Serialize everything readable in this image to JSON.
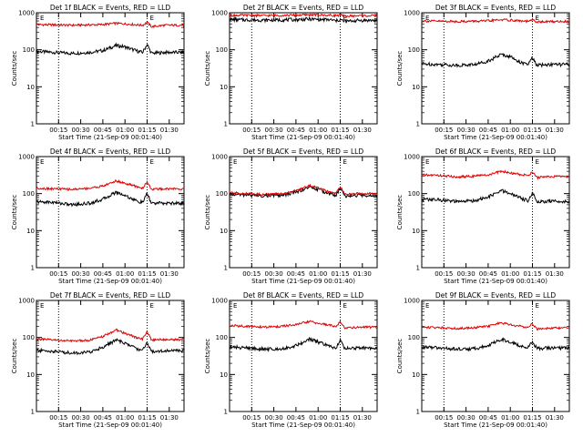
{
  "colors": {
    "events": "#000000",
    "lld": "#e00000",
    "axes": "#000000",
    "background": "#ffffff"
  },
  "chart_data": [
    {
      "type": "line",
      "title": "Det 1f BLACK = Events, RED = LLD",
      "xlabel": "Start Time (21-Sep-09 00:01:40)",
      "ylabel": "Counts/sec",
      "xlim": [
        0.0,
        1.6667
      ],
      "ylim": [
        1,
        1000
      ],
      "y_scale": "log",
      "xticks": [
        0.25,
        0.5,
        0.75,
        1.0,
        1.25,
        1.5
      ],
      "xtick_labels": [
        "00:15",
        "00:30",
        "00:45",
        "01:00",
        "01:15",
        "01:30"
      ],
      "yticks": [
        1,
        10,
        100,
        1000
      ],
      "ytick_labels": [
        "1",
        "10",
        "100",
        "1000"
      ],
      "vlines": [
        0.25,
        1.25
      ],
      "markers": [
        "E",
        "E"
      ],
      "x": [
        0.0,
        0.2,
        0.4,
        0.6,
        0.75,
        0.9,
        1.0,
        1.15,
        1.2,
        1.25,
        1.3,
        1.45,
        1.6667
      ],
      "series": [
        {
          "values": [
            90,
            85,
            80,
            85,
            95,
            130,
            120,
            90,
            85,
            140,
            80,
            85,
            85
          ]
        },
        {
          "values": [
            480,
            470,
            460,
            470,
            480,
            520,
            500,
            470,
            460,
            550,
            420,
            460,
            460
          ]
        }
      ]
    },
    {
      "type": "line",
      "title": "Det 2f BLACK = Events, RED = LLD",
      "xlabel": "Start Time (21-Sep-09 00:01:40)",
      "ylabel": "Counts/sec",
      "xlim": [
        0.0,
        1.6667
      ],
      "ylim": [
        1,
        1000
      ],
      "y_scale": "log",
      "xticks": [
        0.25,
        0.5,
        0.75,
        1.0,
        1.25,
        1.5
      ],
      "xtick_labels": [
        "00:15",
        "00:30",
        "00:45",
        "01:00",
        "01:15",
        "01:30"
      ],
      "yticks": [
        1,
        10,
        100,
        1000
      ],
      "ytick_labels": [
        "1",
        "10",
        "100",
        "1000"
      ],
      "vlines": [
        0.25,
        1.25
      ],
      "markers": [
        "E",
        "E"
      ],
      "x": [
        0.0,
        0.2,
        0.4,
        0.6,
        0.75,
        0.9,
        1.0,
        1.15,
        1.2,
        1.25,
        1.3,
        1.45,
        1.6667
      ],
      "series": [
        {
          "values": [
            650,
            640,
            630,
            640,
            650,
            670,
            660,
            640,
            600,
            650,
            580,
            620,
            620
          ]
        },
        {
          "values": [
            860,
            850,
            840,
            850,
            860,
            880,
            870,
            850,
            840,
            870,
            800,
            830,
            830
          ]
        }
      ]
    },
    {
      "type": "line",
      "title": "Det 3f BLACK = Events, RED = LLD",
      "xlabel": "Start Time (21-Sep-09 00:01:40)",
      "ylabel": "Counts/sec",
      "xlim": [
        0.0,
        1.6667
      ],
      "ylim": [
        1,
        1000
      ],
      "y_scale": "log",
      "xticks": [
        0.25,
        0.5,
        0.75,
        1.0,
        1.25,
        1.5
      ],
      "xtick_labels": [
        "00:15",
        "00:30",
        "00:45",
        "01:00",
        "01:15",
        "01:30"
      ],
      "yticks": [
        1,
        10,
        100,
        1000
      ],
      "ytick_labels": [
        "1",
        "10",
        "100",
        "1000"
      ],
      "vlines": [
        0.25,
        1.25
      ],
      "markers": [
        "E",
        "E"
      ],
      "x": [
        0.0,
        0.2,
        0.4,
        0.6,
        0.75,
        0.9,
        1.0,
        1.15,
        1.2,
        1.25,
        1.3,
        1.45,
        1.6667
      ],
      "series": [
        {
          "values": [
            42,
            40,
            38,
            40,
            50,
            75,
            65,
            42,
            40,
            60,
            38,
            40,
            40
          ]
        },
        {
          "values": [
            600,
            590,
            580,
            590,
            600,
            650,
            630,
            590,
            580,
            640,
            560,
            580,
            580
          ]
        }
      ]
    },
    {
      "type": "line",
      "title": "Det 4f BLACK = Events, RED = LLD",
      "xlabel": "Start Time (21-Sep-09 00:01:40)",
      "ylabel": "Counts/sec",
      "xlim": [
        0.0,
        1.6667
      ],
      "ylim": [
        1,
        1000
      ],
      "y_scale": "log",
      "xticks": [
        0.25,
        0.5,
        0.75,
        1.0,
        1.25,
        1.5
      ],
      "xtick_labels": [
        "00:15",
        "00:30",
        "00:45",
        "01:00",
        "01:15",
        "01:30"
      ],
      "yticks": [
        1,
        10,
        100,
        1000
      ],
      "ytick_labels": [
        "1",
        "10",
        "100",
        "1000"
      ],
      "vlines": [
        0.25,
        1.25
      ],
      "markers": [
        "E",
        "E"
      ],
      "x": [
        0.0,
        0.2,
        0.4,
        0.6,
        0.75,
        0.9,
        1.0,
        1.15,
        1.2,
        1.25,
        1.3,
        1.45,
        1.6667
      ],
      "series": [
        {
          "values": [
            60,
            58,
            50,
            55,
            70,
            110,
            90,
            60,
            58,
            100,
            55,
            55,
            55
          ]
        },
        {
          "values": [
            140,
            135,
            130,
            140,
            160,
            220,
            190,
            150,
            140,
            210,
            130,
            135,
            135
          ]
        }
      ]
    },
    {
      "type": "line",
      "title": "Det 5f BLACK = Events, RED = LLD",
      "xlabel": "Start Time (21-Sep-09 00:01:40)",
      "ylabel": "Counts/sec",
      "xlim": [
        0.0,
        1.6667
      ],
      "ylim": [
        1,
        1000
      ],
      "y_scale": "log",
      "xticks": [
        0.25,
        0.5,
        0.75,
        1.0,
        1.25,
        1.5
      ],
      "xtick_labels": [
        "00:15",
        "00:30",
        "00:45",
        "01:00",
        "01:15",
        "01:30"
      ],
      "yticks": [
        1,
        10,
        100,
        1000
      ],
      "ytick_labels": [
        "1",
        "10",
        "100",
        "1000"
      ],
      "vlines": [
        0.25,
        1.25
      ],
      "markers": [
        "E",
        "E"
      ],
      "x": [
        0.0,
        0.2,
        0.4,
        0.6,
        0.75,
        0.9,
        1.0,
        1.15,
        1.2,
        1.25,
        1.3,
        1.45,
        1.6667
      ],
      "series": [
        {
          "values": [
            95,
            92,
            88,
            90,
            110,
            150,
            130,
            95,
            90,
            140,
            85,
            90,
            90
          ]
        },
        {
          "values": [
            105,
            100,
            95,
            100,
            120,
            165,
            145,
            105,
            100,
            155,
            95,
            100,
            100
          ]
        }
      ]
    },
    {
      "type": "line",
      "title": "Det 6f BLACK = Events, RED = LLD",
      "xlabel": "Start Time (21-Sep-09 00:01:40)",
      "ylabel": "Counts/sec",
      "xlim": [
        0.0,
        1.6667
      ],
      "ylim": [
        1,
        1000
      ],
      "y_scale": "log",
      "xticks": [
        0.25,
        0.5,
        0.75,
        1.0,
        1.25,
        1.5
      ],
      "xtick_labels": [
        "00:15",
        "00:30",
        "00:45",
        "01:00",
        "01:15",
        "01:30"
      ],
      "yticks": [
        1,
        10,
        100,
        1000
      ],
      "ytick_labels": [
        "1",
        "10",
        "100",
        "1000"
      ],
      "vlines": [
        0.25,
        1.25
      ],
      "markers": [
        "E",
        "E"
      ],
      "x": [
        0.0,
        0.2,
        0.4,
        0.6,
        0.75,
        0.9,
        1.0,
        1.15,
        1.2,
        1.25,
        1.3,
        1.45,
        1.6667
      ],
      "series": [
        {
          "values": [
            70,
            68,
            60,
            65,
            80,
            120,
            100,
            70,
            65,
            110,
            60,
            62,
            62
          ]
        },
        {
          "values": [
            320,
            310,
            280,
            300,
            320,
            400,
            360,
            320,
            310,
            380,
            270,
            290,
            290
          ]
        }
      ]
    },
    {
      "type": "line",
      "title": "Det 7f BLACK = Events, RED = LLD",
      "xlabel": "Start Time (21-Sep-09 00:01:40)",
      "ylabel": "Counts/sec",
      "xlim": [
        0.0,
        1.6667
      ],
      "ylim": [
        1,
        1000
      ],
      "y_scale": "log",
      "xticks": [
        0.25,
        0.5,
        0.75,
        1.0,
        1.25,
        1.5
      ],
      "xtick_labels": [
        "00:15",
        "00:30",
        "00:45",
        "01:00",
        "01:15",
        "01:30"
      ],
      "yticks": [
        1,
        10,
        100,
        1000
      ],
      "ytick_labels": [
        "1",
        "10",
        "100",
        "1000"
      ],
      "vlines": [
        0.25,
        1.25
      ],
      "markers": [
        "E",
        "E"
      ],
      "x": [
        0.0,
        0.2,
        0.4,
        0.6,
        0.75,
        0.9,
        1.0,
        1.15,
        1.2,
        1.25,
        1.3,
        1.45,
        1.6667
      ],
      "series": [
        {
          "values": [
            45,
            42,
            38,
            40,
            55,
            85,
            70,
            48,
            45,
            75,
            42,
            44,
            44
          ]
        },
        {
          "values": [
            90,
            85,
            80,
            85,
            105,
            160,
            130,
            95,
            90,
            150,
            85,
            88,
            88
          ]
        }
      ]
    },
    {
      "type": "line",
      "title": "Det 8f BLACK = Events, RED = LLD",
      "xlabel": "Start Time (21-Sep-09 00:01:40)",
      "ylabel": "Counts/sec",
      "xlim": [
        0.0,
        1.6667
      ],
      "ylim": [
        1,
        1000
      ],
      "y_scale": "log",
      "xticks": [
        0.25,
        0.5,
        0.75,
        1.0,
        1.25,
        1.5
      ],
      "xtick_labels": [
        "00:15",
        "00:30",
        "00:45",
        "01:00",
        "01:15",
        "01:30"
      ],
      "yticks": [
        1,
        10,
        100,
        1000
      ],
      "ytick_labels": [
        "1",
        "10",
        "100",
        "1000"
      ],
      "vlines": [
        0.25,
        1.25
      ],
      "markers": [
        "E",
        "E"
      ],
      "x": [
        0.0,
        0.2,
        0.4,
        0.6,
        0.75,
        0.9,
        1.0,
        1.15,
        1.2,
        1.25,
        1.3,
        1.45,
        1.6667
      ],
      "series": [
        {
          "values": [
            55,
            52,
            48,
            50,
            60,
            90,
            75,
            55,
            52,
            85,
            50,
            52,
            52
          ]
        },
        {
          "values": [
            210,
            200,
            190,
            200,
            220,
            270,
            240,
            210,
            200,
            260,
            180,
            190,
            190
          ]
        }
      ]
    },
    {
      "type": "line",
      "title": "Det 9f BLACK = Events, RED = LLD",
      "xlabel": "Start Time (21-Sep-09 00:01:40)",
      "ylabel": "Counts/sec",
      "xlim": [
        0.0,
        1.6667
      ],
      "ylim": [
        1,
        1000
      ],
      "y_scale": "log",
      "xticks": [
        0.25,
        0.5,
        0.75,
        1.0,
        1.25,
        1.5
      ],
      "xtick_labels": [
        "00:15",
        "00:30",
        "00:45",
        "01:00",
        "01:15",
        "01:30"
      ],
      "yticks": [
        1,
        10,
        100,
        1000
      ],
      "ytick_labels": [
        "1",
        "10",
        "100",
        "1000"
      ],
      "vlines": [
        0.25,
        1.25
      ],
      "markers": [
        "E",
        "E"
      ],
      "x": [
        0.0,
        0.2,
        0.4,
        0.6,
        0.75,
        0.9,
        1.0,
        1.15,
        1.2,
        1.25,
        1.3,
        1.45,
        1.6667
      ],
      "series": [
        {
          "values": [
            55,
            52,
            48,
            50,
            60,
            90,
            75,
            55,
            52,
            80,
            50,
            52,
            52
          ]
        },
        {
          "values": [
            190,
            185,
            175,
            185,
            200,
            250,
            220,
            195,
            185,
            240,
            170,
            180,
            180
          ]
        }
      ]
    }
  ]
}
